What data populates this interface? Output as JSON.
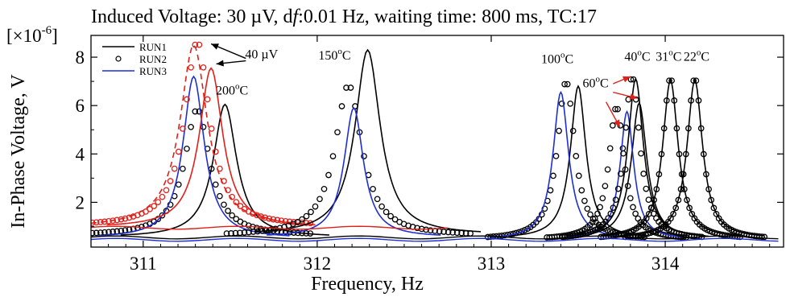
{
  "chart_data": {
    "type": "line",
    "title": "Induced Voltage: 30 µV, d",
    "title_italic": "f",
    "title_rest": ":0.01 Hz, waiting time: 800 ms, TC:17",
    "xlabel": "Frequency, Hz",
    "ylabel": "In-Phase Voltage, V",
    "y_multiplier_prefix": "[×10",
    "y_multiplier_exp": "-6",
    "y_multiplier_suffix": "]",
    "xlim": [
      310.7,
      314.68
    ],
    "ylim": [
      0.15,
      8.9
    ],
    "xticks": [
      311,
      312,
      313,
      314
    ],
    "xtick_labels": [
      "311",
      "312",
      "313",
      "314"
    ],
    "yticks": [
      2,
      4,
      6,
      8
    ],
    "ytick_labels": [
      "2",
      "4",
      "6",
      "8"
    ],
    "legend_position": "top-left",
    "legend": [
      {
        "name": "RUN1",
        "color": "#000000",
        "style": "line"
      },
      {
        "name": "RUN2",
        "color": "#000000",
        "style": "marker"
      },
      {
        "name": "RUN3",
        "color": "#1f2fd0",
        "style": "line"
      }
    ],
    "colors": {
      "black": "#000000",
      "blue": "#1f2fd0",
      "red": "#e0201a"
    },
    "series": [
      {
        "run": "RUN1",
        "color": "#000000",
        "style": "line",
        "group": "200C",
        "peak_x": 311.47,
        "peak_y": 6.05,
        "width": 0.12,
        "baseline": 0.55
      },
      {
        "run": "RUN2",
        "color": "#000000",
        "style": "marker",
        "group": "200C",
        "peak_x": 311.31,
        "peak_y": 5.85,
        "width": 0.13,
        "baseline": 0.62
      },
      {
        "run": "RUN3",
        "color": "#1f2fd0",
        "style": "line",
        "group": "200C",
        "peak_x": 311.29,
        "peak_y": 7.2,
        "width": 0.11,
        "baseline": 0.5
      },
      {
        "run": "RUN1",
        "color": "#e0201a",
        "style": "line",
        "group": "200C-40uV",
        "peak_x": 311.39,
        "peak_y": 7.55,
        "width": 0.12,
        "baseline": 0.95
      },
      {
        "run": "RUN2",
        "color": "#e0201a",
        "style": "marker",
        "group": "200C-40uV",
        "peak_x": 311.31,
        "peak_y": 8.65,
        "width": 0.13,
        "baseline": 1.0
      },
      {
        "run": "RUN3",
        "color": "#e0201a",
        "style": "dashed",
        "group": "200C-40uV",
        "peak_x": 311.29,
        "peak_y": 8.5,
        "width": 0.14,
        "baseline": 0.95
      },
      {
        "run": "RUN1",
        "color": "#000000",
        "style": "line",
        "group": "150C",
        "peak_x": 312.29,
        "peak_y": 8.3,
        "width": 0.13,
        "baseline": 0.65
      },
      {
        "run": "RUN2",
        "color": "#000000",
        "style": "marker",
        "group": "150C",
        "peak_x": 312.18,
        "peak_y": 6.85,
        "width": 0.14,
        "baseline": 0.6
      },
      {
        "run": "RUN3",
        "color": "#1f2fd0",
        "style": "line",
        "group": "150C",
        "peak_x": 312.21,
        "peak_y": 5.9,
        "width": 0.1,
        "baseline": 0.55
      },
      {
        "run": "RUN1",
        "color": "#000000",
        "style": "line",
        "group": "100C",
        "peak_x": 313.5,
        "peak_y": 6.8,
        "width": 0.08,
        "baseline": 0.5
      },
      {
        "run": "RUN2",
        "color": "#000000",
        "style": "marker",
        "group": "100C",
        "peak_x": 313.43,
        "peak_y": 7.0,
        "width": 0.09,
        "baseline": 0.45
      },
      {
        "run": "RUN3",
        "color": "#1f2fd0",
        "style": "line",
        "group": "100C",
        "peak_x": 313.4,
        "peak_y": 6.55,
        "width": 0.08,
        "baseline": 0.45
      },
      {
        "run": "RUN1",
        "color": "#000000",
        "style": "line",
        "group": "60C",
        "peak_x": 313.85,
        "peak_y": 6.1,
        "width": 0.08,
        "baseline": 0.5
      },
      {
        "run": "RUN2",
        "color": "#000000",
        "style": "marker",
        "group": "60C",
        "peak_x": 313.72,
        "peak_y": 5.95,
        "width": 0.08,
        "baseline": 0.45
      },
      {
        "run": "RUN3",
        "color": "#1f2fd0",
        "style": "line",
        "group": "60C",
        "peak_x": 313.78,
        "peak_y": 5.75,
        "width": 0.07,
        "baseline": 0.45
      },
      {
        "run": "RUN1",
        "color": "#000000",
        "style": "line",
        "group": "40C",
        "peak_x": 313.83,
        "peak_y": 7.1,
        "width": 0.08,
        "baseline": 0.5
      },
      {
        "run": "RUN2",
        "color": "#000000",
        "style": "marker",
        "group": "40C",
        "peak_x": 313.81,
        "peak_y": 7.2,
        "width": 0.08,
        "baseline": 0.45
      },
      {
        "run": "RUN1",
        "color": "#000000",
        "style": "line",
        "group": "31C",
        "peak_x": 314.03,
        "peak_y": 7.05,
        "width": 0.08,
        "baseline": 0.5
      },
      {
        "run": "RUN2",
        "color": "#000000",
        "style": "marker",
        "group": "31C",
        "peak_x": 314.03,
        "peak_y": 7.15,
        "width": 0.08,
        "baseline": 0.45
      },
      {
        "run": "RUN1",
        "color": "#000000",
        "style": "line",
        "group": "22C",
        "peak_x": 314.17,
        "peak_y": 7.05,
        "width": 0.08,
        "baseline": 0.5
      },
      {
        "run": "RUN2",
        "color": "#000000",
        "style": "marker",
        "group": "22C",
        "peak_x": 314.17,
        "peak_y": 7.15,
        "width": 0.08,
        "baseline": 0.45
      }
    ],
    "annotations": [
      {
        "base": "200",
        "sup": "o",
        "unit": "C",
        "x": 311.51,
        "y": 6.45
      },
      {
        "base": "150",
        "sup": "o",
        "unit": "C",
        "x": 312.1,
        "y": 7.9
      },
      {
        "base": "100",
        "sup": "o",
        "unit": "C",
        "x": 313.38,
        "y": 7.75
      },
      {
        "base": "60",
        "sup": "o",
        "unit": "C",
        "x": 313.6,
        "y": 6.75
      },
      {
        "base": "40",
        "sup": "o",
        "unit": "C",
        "x": 313.84,
        "y": 7.85
      },
      {
        "base": "31",
        "sup": "o",
        "unit": "C",
        "x": 314.02,
        "y": 7.85
      },
      {
        "base": "22",
        "sup": "o",
        "unit": "C",
        "x": 314.18,
        "y": 7.85
      },
      {
        "base": "40 µV",
        "sup": "",
        "unit": "",
        "x": 311.68,
        "y": 7.95
      }
    ],
    "arrows": [
      {
        "color": "#000000",
        "from": [
          311.59,
          7.95
        ],
        "to": [
          311.39,
          8.55
        ]
      },
      {
        "color": "#000000",
        "from": [
          311.59,
          7.85
        ],
        "to": [
          311.42,
          7.72
        ]
      },
      {
        "color": "#e0201a",
        "from": [
          313.7,
          6.9
        ],
        "to": [
          313.8,
          7.2
        ]
      },
      {
        "color": "#e0201a",
        "from": [
          313.7,
          6.55
        ],
        "to": [
          313.84,
          6.3
        ]
      },
      {
        "color": "#e0201a",
        "from": [
          313.66,
          6.15
        ],
        "to": [
          313.74,
          5.1
        ]
      }
    ]
  }
}
